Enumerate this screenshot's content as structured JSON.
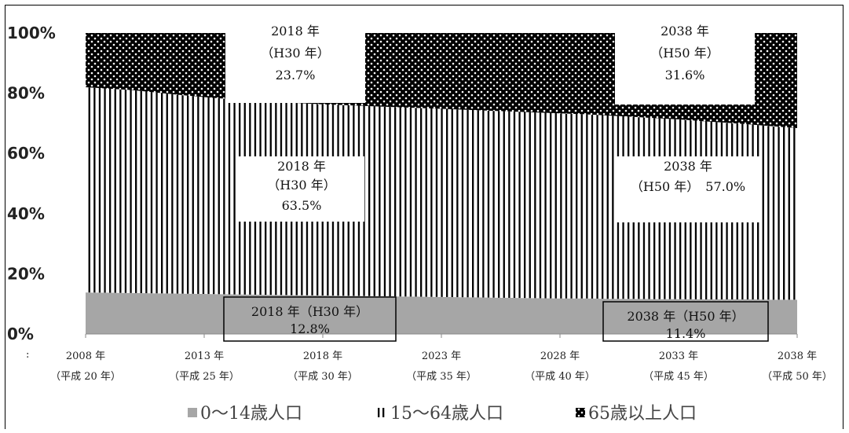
{
  "chart_data": {
    "type": "area",
    "stacked": "percent",
    "y_ticks": [
      "0%",
      "20%",
      "40%",
      "60%",
      "80%",
      "100%"
    ],
    "ylim": [
      0,
      100
    ],
    "x_years": [
      2008,
      2009,
      2010,
      2011,
      2012,
      2013,
      2014,
      2015,
      2016,
      2017,
      2018,
      2019,
      2020,
      2021,
      2022,
      2023,
      2024,
      2025,
      2026,
      2027,
      2028,
      2029,
      2030,
      2031,
      2032,
      2033,
      2034,
      2035,
      2036,
      2037,
      2038
    ],
    "x_tick_labels": [
      {
        "year": "2008 年",
        "era": "（平成 20 年）"
      },
      {
        "year": "2013 年",
        "era": "（平成 25 年）"
      },
      {
        "year": "2018 年",
        "era": "（平成 30 年）"
      },
      {
        "year": "2023 年",
        "era": "（平成 35 年）"
      },
      {
        "year": "2028 年",
        "era": "（平成 40 年）"
      },
      {
        "year": "2033 年",
        "era": "（平成 45 年）"
      },
      {
        "year": "2038 年",
        "era": "（平成 50 年）"
      }
    ],
    "series": [
      {
        "name": "0～14歳人口",
        "pattern": "solid-gray",
        "values": [
          13.8,
          13.7,
          13.6,
          13.5,
          13.4,
          13.3,
          13.2,
          13.1,
          13.0,
          12.9,
          12.8,
          12.7,
          12.6,
          12.5,
          12.4,
          12.3,
          12.2,
          12.1,
          12.0,
          11.9,
          11.8,
          11.8,
          11.7,
          11.7,
          11.6,
          11.6,
          11.5,
          11.5,
          11.5,
          11.4,
          11.4
        ]
      },
      {
        "name": "15～64歳人口",
        "pattern": "vertical-lines",
        "values": [
          68.2,
          67.8,
          67.4,
          66.7,
          66.0,
          65.4,
          64.9,
          64.5,
          64.1,
          63.8,
          63.5,
          63.3,
          63.1,
          62.9,
          62.7,
          62.5,
          62.3,
          62.1,
          61.9,
          61.7,
          61.5,
          61.2,
          60.9,
          60.5,
          60.1,
          59.7,
          59.2,
          58.7,
          58.1,
          57.6,
          57.0
        ]
      },
      {
        "name": "65歳以上人口",
        "pattern": "dots",
        "values": [
          18.0,
          18.5,
          19.0,
          19.8,
          20.6,
          21.3,
          21.9,
          22.4,
          22.9,
          23.3,
          23.7,
          24.0,
          24.3,
          24.6,
          24.9,
          25.2,
          25.5,
          25.8,
          26.1,
          26.4,
          26.7,
          27.0,
          27.4,
          27.8,
          28.3,
          28.7,
          29.3,
          29.8,
          30.4,
          31.0,
          31.6
        ]
      }
    ],
    "annotations": {
      "a65_2018": [
        "2018 年",
        "（H30 年）",
        "23.7%"
      ],
      "a65_2038": [
        "2038 年",
        "（H50 年）",
        "31.6%"
      ],
      "a1564_2018": [
        "2018 年",
        "（H30 年）",
        "63.5%"
      ],
      "a1564_2038": [
        "2038 年",
        "（H50 年）　57.0%"
      ],
      "a014_2018": [
        "2018 年（H30 年）",
        "12.8%"
      ],
      "a014_2038": [
        "2038 年（H50 年）",
        "11.4%"
      ]
    },
    "legend_position": "bottom",
    "misc_mark": ":"
  },
  "colors": {
    "gray": "#a6a6a6",
    "line": "#000000",
    "dot_bg": "#000000",
    "dot": "#ffffff"
  }
}
